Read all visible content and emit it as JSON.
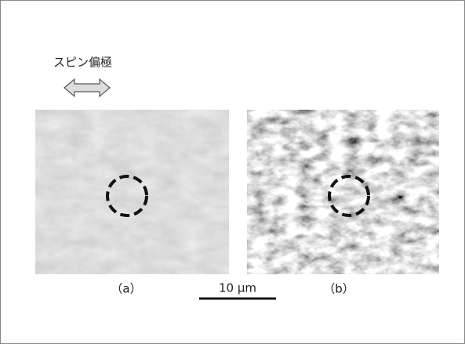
{
  "figure": {
    "polarization_label": "スピン偏極",
    "panels": [
      {
        "label": "（a）"
      },
      {
        "label": "（b）"
      }
    ],
    "scale_bar": {
      "label": "10 µm"
    }
  }
}
